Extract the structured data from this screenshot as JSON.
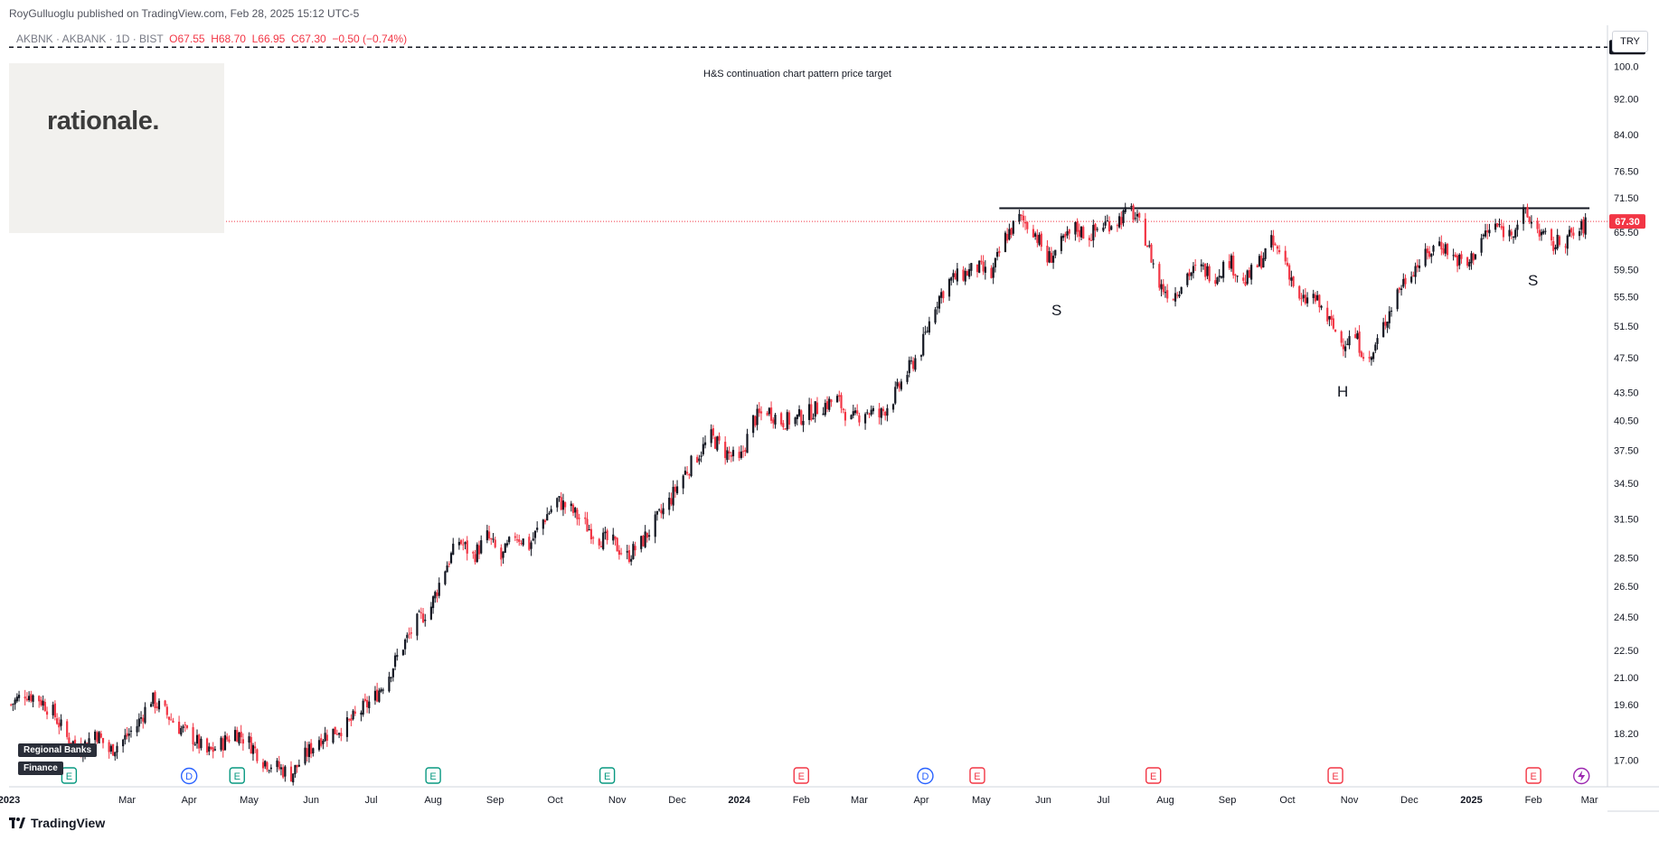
{
  "header": {
    "publish_line": "RoyGulluoglu published on TradingView.com, Feb 28, 2025 15:12 UTC-5",
    "symbol_line": "AKBNK · AKBANK · 1D · BIST",
    "open": "O67.55",
    "high": "H68.70",
    "low": "L66.95",
    "close": "C67.30",
    "change": "−0.50 (−0.74%)"
  },
  "logo_text": "rationale.",
  "currency": "TRY",
  "footer_brand": "TradingView",
  "sector_tags": [
    "Regional Banks",
    "Finance"
  ],
  "annotations": {
    "target_label": "H&S continuation chart pattern price target",
    "left_shoulder": "S",
    "head": "H",
    "right_shoulder": "S"
  },
  "colors": {
    "up": "#131722",
    "down": "#f23645",
    "target_tag": "#131722",
    "price_tag": "#f23645",
    "event_e_green": "#089981",
    "event_e_red": "#f23645",
    "event_d": "#2962ff",
    "event_bolt": "#9c27b0"
  },
  "events": [
    {
      "type": "E",
      "color": "green",
      "date": "2023-01-31"
    },
    {
      "type": "D",
      "color": "blue",
      "date": "2023-04-01"
    },
    {
      "type": "E",
      "color": "green",
      "date": "2023-04-25"
    },
    {
      "type": "E",
      "color": "green",
      "date": "2023-08-01"
    },
    {
      "type": "E",
      "color": "green",
      "date": "2023-10-27"
    },
    {
      "type": "E",
      "color": "red",
      "date": "2024-02-01"
    },
    {
      "type": "D",
      "color": "blue",
      "date": "2024-04-03"
    },
    {
      "type": "E",
      "color": "red",
      "date": "2024-04-29"
    },
    {
      "type": "E",
      "color": "red",
      "date": "2024-07-26"
    },
    {
      "type": "E",
      "color": "red",
      "date": "2024-10-25"
    },
    {
      "type": "E",
      "color": "red",
      "date": "2025-02-01"
    },
    {
      "type": "bolt",
      "color": "purple",
      "date": "2025-02-25"
    }
  ],
  "chart_data": {
    "type": "candlestick",
    "title": "AKBNK · AKBANK · 1D · BIST",
    "x_start": "2023-01-01",
    "x_end": "2025-03-10",
    "x_ticks": [
      {
        "label": "2023",
        "date": "2023-01-01",
        "bold": true
      },
      {
        "label": "Mar",
        "date": "2023-03-01"
      },
      {
        "label": "Apr",
        "date": "2023-04-01"
      },
      {
        "label": "May",
        "date": "2023-05-01"
      },
      {
        "label": "Jun",
        "date": "2023-06-01"
      },
      {
        "label": "Jul",
        "date": "2023-07-01"
      },
      {
        "label": "Aug",
        "date": "2023-08-01"
      },
      {
        "label": "Sep",
        "date": "2023-09-01"
      },
      {
        "label": "Oct",
        "date": "2023-10-01"
      },
      {
        "label": "Nov",
        "date": "2023-11-01"
      },
      {
        "label": "Dec",
        "date": "2023-12-01"
      },
      {
        "label": "2024",
        "date": "2024-01-01",
        "bold": true
      },
      {
        "label": "Feb",
        "date": "2024-02-01"
      },
      {
        "label": "Mar",
        "date": "2024-03-01"
      },
      {
        "label": "Apr",
        "date": "2024-04-01"
      },
      {
        "label": "May",
        "date": "2024-05-01"
      },
      {
        "label": "Jun",
        "date": "2024-06-01"
      },
      {
        "label": "Jul",
        "date": "2024-07-01"
      },
      {
        "label": "Aug",
        "date": "2024-08-01"
      },
      {
        "label": "Sep",
        "date": "2024-09-01"
      },
      {
        "label": "Oct",
        "date": "2024-10-01"
      },
      {
        "label": "Nov",
        "date": "2024-11-01"
      },
      {
        "label": "Dec",
        "date": "2024-12-01"
      },
      {
        "label": "2025",
        "date": "2025-01-01",
        "bold": true
      },
      {
        "label": "Feb",
        "date": "2025-02-01"
      },
      {
        "label": "Mar",
        "date": "2025-03-01"
      }
    ],
    "y_scale": "log",
    "y_range": [
      16.0,
      108.0
    ],
    "y_ticks": [
      "100.0",
      "92.00",
      "84.00",
      "76.50",
      "71.50",
      "65.50",
      "59.50",
      "55.50",
      "51.50",
      "47.50",
      "43.50",
      "40.50",
      "37.50",
      "34.50",
      "31.50",
      "28.50",
      "26.50",
      "24.50",
      "22.50",
      "21.00",
      "19.60",
      "18.20",
      "17.00"
    ],
    "last_price": "67.30",
    "target_price": "105.0",
    "neckline": {
      "start": "2024-05-10",
      "end": "2025-03-01",
      "value": 69.6
    },
    "close_series": [
      [
        "2023-01-02",
        19.6
      ],
      [
        "2023-01-09",
        20.2
      ],
      [
        "2023-01-16",
        19.9
      ],
      [
        "2023-01-23",
        19.2
      ],
      [
        "2023-01-30",
        18.0
      ],
      [
        "2023-02-06",
        17.5
      ],
      [
        "2023-02-13",
        18.3
      ],
      [
        "2023-02-20",
        17.4
      ],
      [
        "2023-02-27",
        17.9
      ],
      [
        "2023-03-06",
        18.6
      ],
      [
        "2023-03-13",
        19.9
      ],
      [
        "2023-03-20",
        19.2
      ],
      [
        "2023-03-27",
        18.5
      ],
      [
        "2023-04-03",
        18.0
      ],
      [
        "2023-04-10",
        17.3
      ],
      [
        "2023-04-17",
        17.7
      ],
      [
        "2023-04-24",
        18.3
      ],
      [
        "2023-05-01",
        17.8
      ],
      [
        "2023-05-08",
        17.0
      ],
      [
        "2023-05-15",
        16.7
      ],
      [
        "2023-05-22",
        16.4
      ],
      [
        "2023-05-29",
        17.2
      ],
      [
        "2023-06-05",
        18.0
      ],
      [
        "2023-06-12",
        18.3
      ],
      [
        "2023-06-19",
        18.6
      ],
      [
        "2023-06-26",
        19.3
      ],
      [
        "2023-07-03",
        20.0
      ],
      [
        "2023-07-10",
        21.2
      ],
      [
        "2023-07-17",
        22.8
      ],
      [
        "2023-07-24",
        24.2
      ],
      [
        "2023-07-31",
        25.2
      ],
      [
        "2023-08-07",
        27.8
      ],
      [
        "2023-08-14",
        29.8
      ],
      [
        "2023-08-21",
        28.6
      ],
      [
        "2023-08-28",
        30.1
      ],
      [
        "2023-09-04",
        28.4
      ],
      [
        "2023-09-11",
        30.3
      ],
      [
        "2023-09-18",
        29.4
      ],
      [
        "2023-09-25",
        31.4
      ],
      [
        "2023-10-02",
        33.0
      ],
      [
        "2023-10-09",
        32.2
      ],
      [
        "2023-10-16",
        31.0
      ],
      [
        "2023-10-23",
        30.0
      ],
      [
        "2023-10-30",
        29.6
      ],
      [
        "2023-11-06",
        28.6
      ],
      [
        "2023-11-13",
        29.6
      ],
      [
        "2023-11-20",
        31.2
      ],
      [
        "2023-11-27",
        32.9
      ],
      [
        "2023-12-04",
        35.2
      ],
      [
        "2023-12-11",
        37.0
      ],
      [
        "2023-12-18",
        38.8
      ],
      [
        "2023-12-25",
        37.4
      ],
      [
        "2024-01-01",
        36.3
      ],
      [
        "2024-01-08",
        40.5
      ],
      [
        "2024-01-15",
        41.6
      ],
      [
        "2024-01-22",
        40.4
      ],
      [
        "2024-01-29",
        40.6
      ],
      [
        "2024-02-05",
        41.3
      ],
      [
        "2024-02-12",
        42.1
      ],
      [
        "2024-02-19",
        42.7
      ],
      [
        "2024-02-26",
        40.4
      ],
      [
        "2024-03-04",
        41.6
      ],
      [
        "2024-03-11",
        40.9
      ],
      [
        "2024-03-18",
        42.9
      ],
      [
        "2024-03-25",
        45.8
      ],
      [
        "2024-04-01",
        48.6
      ],
      [
        "2024-04-08",
        54.6
      ],
      [
        "2024-04-15",
        57.8
      ],
      [
        "2024-04-22",
        58.8
      ],
      [
        "2024-04-29",
        59.8
      ],
      [
        "2024-05-06",
        58.5
      ],
      [
        "2024-05-13",
        64.6
      ],
      [
        "2024-05-20",
        67.8
      ],
      [
        "2024-05-27",
        66.0
      ],
      [
        "2024-06-03",
        61.0
      ],
      [
        "2024-06-10",
        63.4
      ],
      [
        "2024-06-17",
        66.1
      ],
      [
        "2024-06-24",
        64.9
      ],
      [
        "2024-07-01",
        66.8
      ],
      [
        "2024-07-08",
        67.5
      ],
      [
        "2024-07-15",
        69.2
      ],
      [
        "2024-07-22",
        64.6
      ],
      [
        "2024-07-29",
        57.1
      ],
      [
        "2024-08-05",
        55.7
      ],
      [
        "2024-08-12",
        58.9
      ],
      [
        "2024-08-19",
        59.6
      ],
      [
        "2024-08-26",
        58.7
      ],
      [
        "2024-09-02",
        61.0
      ],
      [
        "2024-09-09",
        57.4
      ],
      [
        "2024-09-16",
        60.1
      ],
      [
        "2024-09-23",
        63.6
      ],
      [
        "2024-09-30",
        61.0
      ],
      [
        "2024-10-07",
        54.6
      ],
      [
        "2024-10-14",
        55.5
      ],
      [
        "2024-10-21",
        52.5
      ],
      [
        "2024-10-28",
        49.5
      ],
      [
        "2024-11-04",
        50.1
      ],
      [
        "2024-11-11",
        46.8
      ],
      [
        "2024-11-18",
        51.5
      ],
      [
        "2024-11-25",
        56.3
      ],
      [
        "2024-12-02",
        59.5
      ],
      [
        "2024-12-09",
        61.4
      ],
      [
        "2024-12-16",
        63.9
      ],
      [
        "2024-12-23",
        61.5
      ],
      [
        "2024-12-30",
        60.0
      ],
      [
        "2025-01-06",
        64.5
      ],
      [
        "2025-01-13",
        66.6
      ],
      [
        "2025-01-20",
        65.2
      ],
      [
        "2025-01-27",
        68.6
      ],
      [
        "2025-02-03",
        66.1
      ],
      [
        "2025-02-10",
        63.1
      ],
      [
        "2025-02-17",
        64.4
      ],
      [
        "2025-02-24",
        65.6
      ],
      [
        "2025-02-28",
        67.3
      ]
    ]
  }
}
